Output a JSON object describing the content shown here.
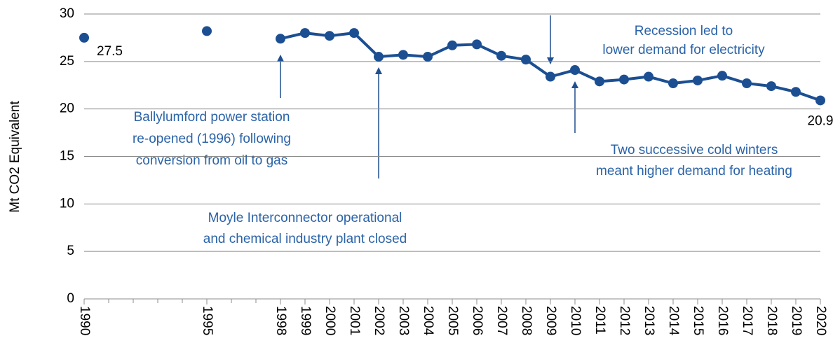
{
  "chart_data": {
    "type": "line",
    "y_label": "Mt CO2 Equivalent",
    "x": [
      1990,
      1991,
      1992,
      1993,
      1994,
      1995,
      1996,
      1997,
      1998,
      1999,
      2000,
      2001,
      2002,
      2003,
      2004,
      2005,
      2006,
      2007,
      2008,
      2009,
      2010,
      2011,
      2012,
      2013,
      2014,
      2015,
      2016,
      2017,
      2018,
      2019,
      2020
    ],
    "series": [
      {
        "color": "#1c4f92",
        "values": [
          27.5,
          null,
          null,
          null,
          null,
          28.2,
          null,
          null,
          27.4,
          28.0,
          27.7,
          28.0,
          25.5,
          25.7,
          25.5,
          26.7,
          26.8,
          25.6,
          25.2,
          23.4,
          24.1,
          22.9,
          23.1,
          23.4,
          22.7,
          23.0,
          23.5,
          22.7,
          22.4,
          21.8,
          20.9
        ],
        "value_labels": [
          "27.5",
          null,
          null,
          null,
          null,
          null,
          null,
          null,
          null,
          null,
          null,
          null,
          null,
          null,
          null,
          null,
          null,
          null,
          null,
          null,
          null,
          null,
          null,
          null,
          null,
          null,
          null,
          null,
          null,
          null,
          "20.9"
        ]
      }
    ],
    "xlim": [
      1990,
      2020
    ],
    "xticks": [
      1990,
      1995,
      1998,
      1999,
      2000,
      2001,
      2002,
      2003,
      2004,
      2005,
      2006,
      2007,
      2008,
      2009,
      2010,
      2011,
      2012,
      2013,
      2014,
      2015,
      2016,
      2017,
      2018,
      2019,
      2020
    ],
    "ylim": [
      0,
      30
    ],
    "yticks": [
      0,
      5,
      10,
      15,
      20,
      25,
      30
    ],
    "grid": true,
    "annotations": [
      {
        "lines": [
          "Recession led to",
          "lower demand for electricity"
        ]
      },
      {
        "lines": [
          "Ballylumford power station",
          "re-opened (1996) following",
          "conversion from oil to gas"
        ]
      },
      {
        "lines": [
          "Moyle Interconnector operational",
          "and chemical industry plant closed"
        ]
      },
      {
        "lines": [
          "Two successive cold winters",
          "meant higher demand for heating"
        ]
      }
    ]
  }
}
